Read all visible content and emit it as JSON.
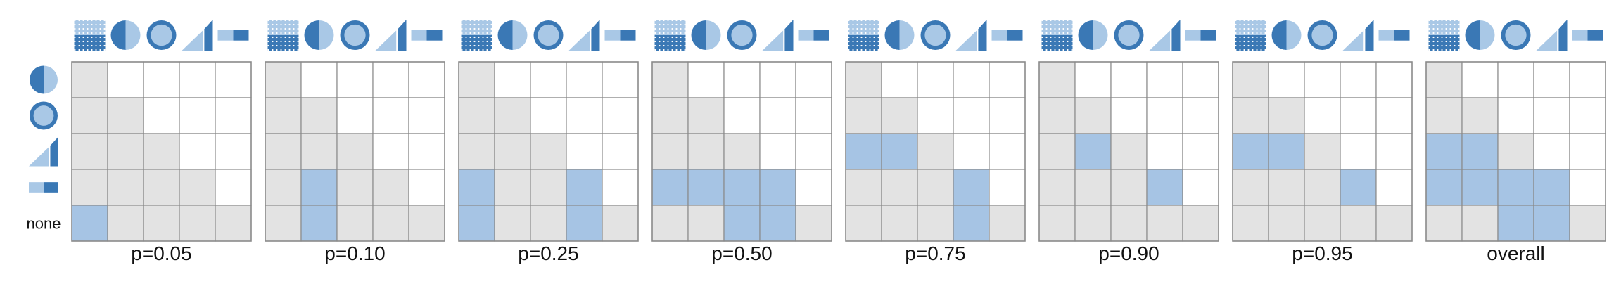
{
  "chart_data": {
    "type": "heatmap",
    "title": "",
    "xlabel": "",
    "ylabel": "",
    "columns": [
      "texture-icon",
      "half-circle-icon",
      "ring-circle-icon",
      "triangle-bar-icon",
      "two-bars-icon"
    ],
    "rows": [
      "half-circle-icon",
      "ring-circle-icon",
      "triangle-bar-icon",
      "two-bars-icon",
      "none"
    ],
    "row_text": [
      "",
      "",
      "",
      "",
      "none"
    ],
    "legend": {
      "0": "white",
      "1": "gray",
      "2": "blue"
    },
    "colors": {
      "white": "#ffffff",
      "gray": "#e3e3e3",
      "blue": "#a6c4e4",
      "grid": "#8a8a8a",
      "icon_dark": "#3a78b5",
      "icon_light": "#a9c8e6"
    },
    "panels": [
      {
        "label": "p=0.05",
        "cells": [
          [
            1,
            0,
            0,
            0,
            0
          ],
          [
            1,
            1,
            0,
            0,
            0
          ],
          [
            1,
            1,
            1,
            0,
            0
          ],
          [
            1,
            1,
            1,
            1,
            0
          ],
          [
            2,
            1,
            1,
            1,
            1
          ]
        ]
      },
      {
        "label": "p=0.10",
        "cells": [
          [
            1,
            0,
            0,
            0,
            0
          ],
          [
            1,
            1,
            0,
            0,
            0
          ],
          [
            1,
            1,
            1,
            0,
            0
          ],
          [
            1,
            2,
            1,
            1,
            0
          ],
          [
            1,
            2,
            1,
            1,
            1
          ]
        ]
      },
      {
        "label": "p=0.25",
        "cells": [
          [
            1,
            0,
            0,
            0,
            0
          ],
          [
            1,
            1,
            0,
            0,
            0
          ],
          [
            1,
            1,
            1,
            0,
            0
          ],
          [
            2,
            1,
            1,
            2,
            0
          ],
          [
            2,
            1,
            1,
            2,
            1
          ]
        ]
      },
      {
        "label": "p=0.50",
        "cells": [
          [
            1,
            0,
            0,
            0,
            0
          ],
          [
            1,
            1,
            0,
            0,
            0
          ],
          [
            1,
            1,
            1,
            0,
            0
          ],
          [
            2,
            2,
            2,
            2,
            0
          ],
          [
            1,
            1,
            2,
            2,
            1
          ]
        ]
      },
      {
        "label": "p=0.75",
        "cells": [
          [
            1,
            0,
            0,
            0,
            0
          ],
          [
            1,
            1,
            0,
            0,
            0
          ],
          [
            2,
            2,
            1,
            0,
            0
          ],
          [
            1,
            1,
            1,
            2,
            0
          ],
          [
            1,
            1,
            1,
            2,
            1
          ]
        ]
      },
      {
        "label": "p=0.90",
        "cells": [
          [
            1,
            0,
            0,
            0,
            0
          ],
          [
            1,
            1,
            0,
            0,
            0
          ],
          [
            1,
            2,
            1,
            0,
            0
          ],
          [
            1,
            1,
            1,
            2,
            0
          ],
          [
            1,
            1,
            1,
            1,
            1
          ]
        ]
      },
      {
        "label": "p=0.95",
        "cells": [
          [
            1,
            0,
            0,
            0,
            0
          ],
          [
            1,
            1,
            0,
            0,
            0
          ],
          [
            2,
            2,
            1,
            0,
            0
          ],
          [
            1,
            1,
            1,
            2,
            0
          ],
          [
            1,
            1,
            1,
            1,
            1
          ]
        ]
      },
      {
        "label": "overall",
        "cells": [
          [
            1,
            0,
            0,
            0,
            0
          ],
          [
            1,
            1,
            0,
            0,
            0
          ],
          [
            2,
            2,
            1,
            0,
            0
          ],
          [
            2,
            2,
            2,
            2,
            0
          ],
          [
            1,
            1,
            2,
            2,
            1
          ]
        ]
      }
    ]
  }
}
